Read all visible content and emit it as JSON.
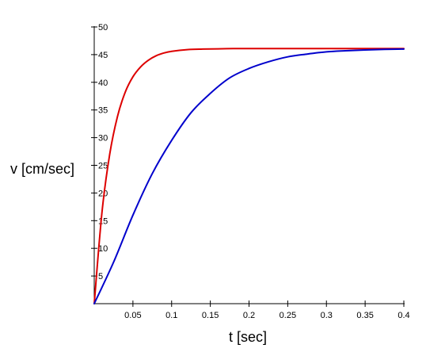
{
  "chart_data": {
    "type": "line",
    "title": "",
    "xlabel": "t [sec]",
    "ylabel": "v [cm/sec]",
    "xlim": [
      0,
      0.4
    ],
    "ylim": [
      0,
      50
    ],
    "x_ticks": [
      0.05,
      0.1,
      0.15,
      0.2,
      0.25,
      0.3,
      0.35,
      0.4
    ],
    "y_ticks": [
      5,
      10,
      15,
      20,
      25,
      30,
      35,
      40,
      45,
      50
    ],
    "x_tick_labels": [
      "0.05",
      "0.1",
      "0.15",
      "0.2",
      "0.25",
      "0.3",
      "0.35",
      "0.4"
    ],
    "y_tick_labels": [
      "5",
      "10",
      "15",
      "20",
      "25",
      "30",
      "35",
      "40",
      "45",
      "50"
    ],
    "grid": false,
    "series": [
      {
        "color": "#dd0000",
        "x": [
          0,
          0.01,
          0.02,
          0.03,
          0.04,
          0.05,
          0.06,
          0.07,
          0.08,
          0.09,
          0.1,
          0.12,
          0.14,
          0.16,
          0.18,
          0.2,
          0.25,
          0.3,
          0.35,
          0.4
        ],
        "y": [
          0,
          16.5,
          27.0,
          33.8,
          38.2,
          41.0,
          42.8,
          44.0,
          44.8,
          45.3,
          45.6,
          45.9,
          46.0,
          46.05,
          46.1,
          46.1,
          46.1,
          46.1,
          46.1,
          46.1
        ]
      },
      {
        "color": "#0000cc",
        "x": [
          0,
          0.025,
          0.05,
          0.075,
          0.1,
          0.125,
          0.15,
          0.175,
          0.2,
          0.225,
          0.25,
          0.275,
          0.3,
          0.325,
          0.35,
          0.375,
          0.4
        ],
        "y": [
          0,
          7.5,
          16.0,
          23.5,
          29.5,
          34.5,
          38.0,
          40.8,
          42.5,
          43.7,
          44.6,
          45.1,
          45.5,
          45.7,
          45.85,
          45.95,
          46.0
        ]
      }
    ]
  }
}
